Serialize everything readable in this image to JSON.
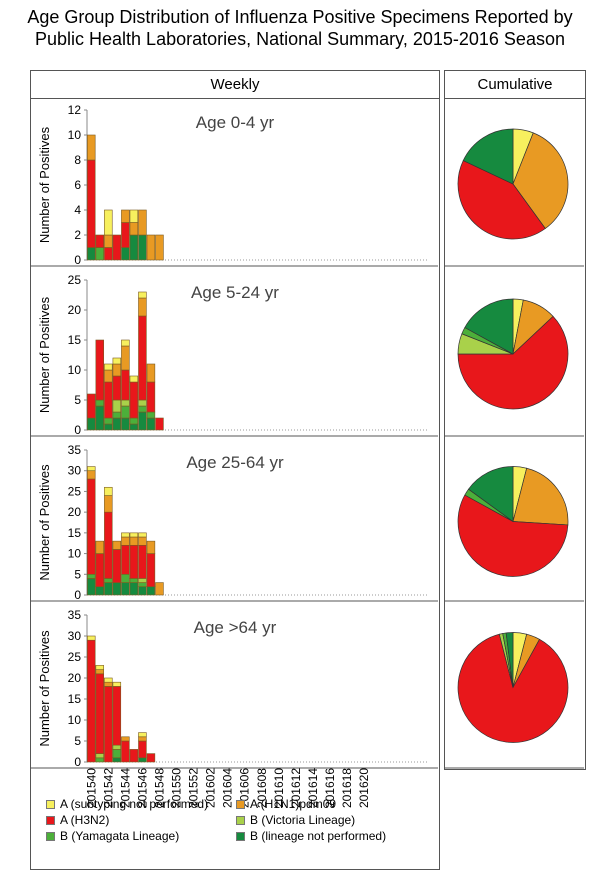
{
  "title_line1": "Age Group Distribution of Influenza Positive Specimens Reported by",
  "title_line2": "Public Health Laboratories, National Summary, 2015-2016 Season",
  "weekly_label": "Weekly",
  "cumulative_label": "Cumulative",
  "ylabel": "Number of Positives",
  "categories": [
    "A (subtyping not performed)",
    "A (H1N1)pdm09",
    "A (H3N2)",
    "B (Victoria Lineage)",
    "B (Yamagata Lineage)",
    "B (lineage not performed)"
  ],
  "colors": [
    "#f7f05e",
    "#e89a23",
    "#e8171b",
    "#a9d14a",
    "#4caf3a",
    "#168a3f"
  ],
  "chart_data": {
    "type": "bar",
    "stacked": true,
    "x_tick_labels": [
      "201540",
      "201542",
      "201544",
      "201546",
      "201548",
      "201550",
      "201552",
      "201602",
      "201604",
      "201606",
      "201608",
      "201610",
      "201612",
      "201614",
      "201616",
      "201618",
      "201620"
    ],
    "x_weeks_shown": 40,
    "panels": [
      {
        "title": "Age 0-4 yr",
        "ylim": [
          0,
          12
        ],
        "yticks": [
          0,
          2,
          4,
          6,
          8,
          10,
          12
        ],
        "bars": [
          [
            0,
            2,
            7,
            0,
            0,
            1
          ],
          [
            0,
            0,
            1,
            0,
            1,
            0
          ],
          [
            2,
            1,
            1,
            0,
            0,
            0
          ],
          [
            0,
            0,
            2,
            0,
            0,
            0
          ],
          [
            0,
            1,
            2,
            0,
            0,
            1
          ],
          [
            1,
            1,
            0,
            0,
            0,
            2
          ],
          [
            0,
            2,
            0,
            0,
            0,
            2
          ],
          [
            0,
            2,
            0,
            0,
            0,
            0
          ],
          [
            0,
            2,
            0,
            0,
            0,
            0
          ]
        ],
        "pie": [
          6,
          34,
          42,
          0,
          0,
          18
        ]
      },
      {
        "title": "Age 5-24 yr",
        "ylim": [
          0,
          25
        ],
        "yticks": [
          0,
          5,
          10,
          15,
          20,
          25
        ],
        "bars": [
          [
            0,
            0,
            4,
            0,
            0,
            2
          ],
          [
            0,
            0,
            10,
            0,
            1,
            4
          ],
          [
            1,
            2,
            6,
            0,
            1,
            1
          ],
          [
            1,
            2,
            4,
            2,
            1,
            2
          ],
          [
            1,
            4,
            5,
            1,
            2,
            2
          ],
          [
            1,
            0,
            6,
            0,
            1,
            1
          ],
          [
            1,
            3,
            14,
            1,
            1,
            3
          ],
          [
            0,
            3,
            5,
            0,
            1,
            2
          ],
          [
            0,
            0,
            2,
            0,
            0,
            0
          ]
        ],
        "pie": [
          3,
          10,
          62,
          6,
          2,
          17
        ]
      },
      {
        "title": "Age 25-64 yr",
        "ylim": [
          0,
          35
        ],
        "yticks": [
          0,
          5,
          10,
          15,
          20,
          25,
          30,
          35
        ],
        "bars": [
          [
            1,
            2,
            23,
            0,
            1,
            4
          ],
          [
            0,
            3,
            8,
            0,
            0,
            2
          ],
          [
            2,
            4,
            16,
            0,
            1,
            3
          ],
          [
            0,
            2,
            8,
            0,
            0,
            3
          ],
          [
            1,
            2,
            7,
            0,
            2,
            3
          ],
          [
            1,
            2,
            8,
            0,
            1,
            3
          ],
          [
            1,
            2,
            8,
            1,
            1,
            2
          ],
          [
            0,
            3,
            8,
            0,
            0,
            2
          ],
          [
            0,
            3,
            0,
            0,
            0,
            0
          ]
        ],
        "pie": [
          4,
          22,
          57,
          0,
          2,
          15
        ]
      },
      {
        "title": "Age >64 yr",
        "ylim": [
          0,
          35
        ],
        "yticks": [
          0,
          5,
          10,
          15,
          20,
          25,
          30,
          35
        ],
        "bars": [
          [
            1,
            0,
            29,
            0,
            0,
            0
          ],
          [
            1,
            1,
            19,
            1,
            1,
            0
          ],
          [
            1,
            1,
            18,
            0,
            0,
            0
          ],
          [
            1,
            0,
            14,
            1,
            2,
            1
          ],
          [
            0,
            1,
            5,
            0,
            0,
            0
          ],
          [
            0,
            0,
            3,
            0,
            0,
            0
          ],
          [
            1,
            1,
            4,
            0,
            0,
            1
          ],
          [
            0,
            0,
            2,
            0,
            0,
            0
          ],
          [
            0,
            0,
            0,
            0,
            0,
            0
          ]
        ],
        "pie": [
          4,
          4,
          88,
          1,
          1,
          2
        ]
      }
    ]
  }
}
